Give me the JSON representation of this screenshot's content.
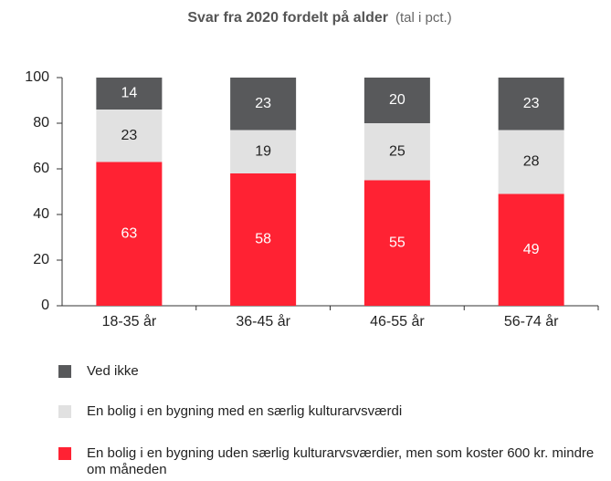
{
  "chart_data": {
    "type": "stacked_bar",
    "title": "Svar fra 2020 fordelt på alder",
    "subtitle": "(tal i pct.)",
    "categories": [
      "18-35 år",
      "36-45 år",
      "46-55 år",
      "56-74 år"
    ],
    "series": [
      {
        "name": "Ved ikke",
        "color": "#58595b",
        "values": [
          14,
          23,
          20,
          23
        ]
      },
      {
        "name": "En bolig i en bygning med en særlig kulturarvsværdi",
        "color": "#e1e1e1",
        "values": [
          23,
          19,
          25,
          28
        ]
      },
      {
        "name": "En bolig i en bygning uden særlig kulturarvsværdier, men som koster 600 kr. mindre om måneden",
        "color": "#ff2233",
        "values": [
          63,
          58,
          55,
          49
        ]
      }
    ],
    "ylim": [
      0,
      100
    ],
    "yticks": [
      0,
      20,
      40,
      60,
      80,
      100
    ],
    "grid": false
  }
}
